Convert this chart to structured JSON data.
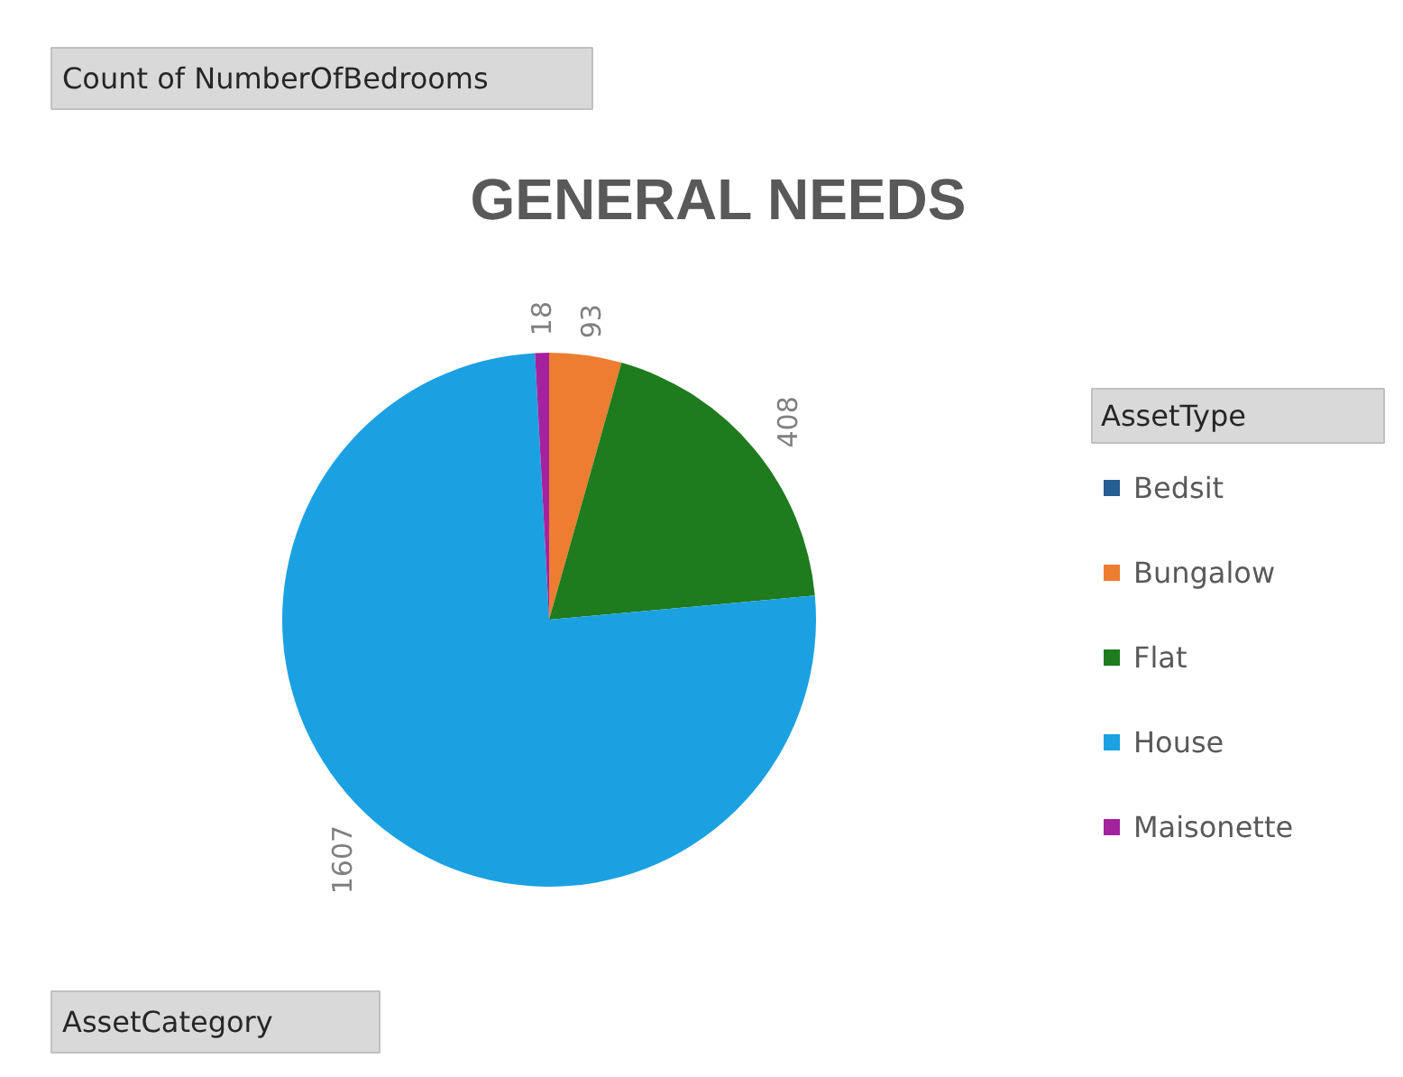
{
  "chart_data": {
    "type": "pie",
    "title": "GENERAL NEEDS",
    "legend_title": "AssetType",
    "categories": [
      "Bedsit",
      "Bungalow",
      "Flat",
      "House",
      "Maisonette"
    ],
    "values": [
      null,
      93,
      408,
      1607,
      18
    ],
    "colors": [
      "#255e91",
      "#ed7d31",
      "#1e7b1e",
      "#1ba1e2",
      "#a5229f"
    ],
    "data_labels": true,
    "legend": "right",
    "annotations": [
      "Count of NumberOfBedrooms",
      "AssetCategory"
    ]
  }
}
